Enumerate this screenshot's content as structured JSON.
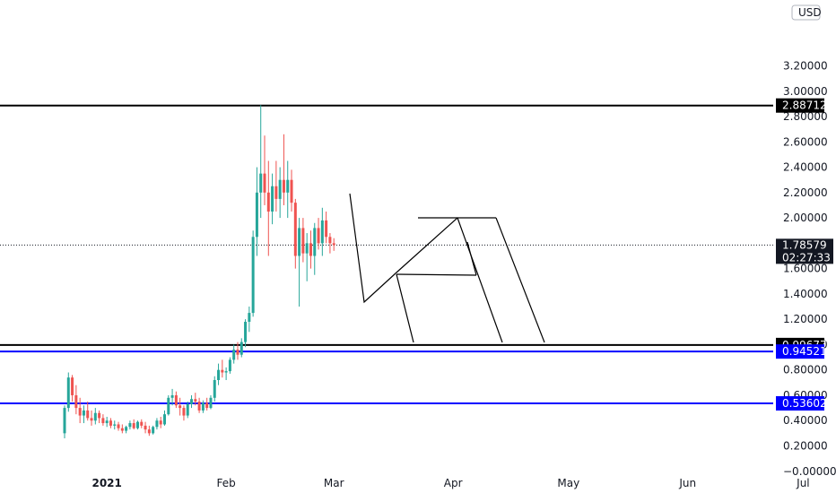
{
  "currency": "USD",
  "chart_data": {
    "type": "candlestick",
    "y_axis": {
      "range": [
        -0.03,
        3.72
      ],
      "ticks": [
        "3.20000",
        "3.00000",
        "2.80000",
        "2.60000",
        "2.40000",
        "2.20000",
        "2.00000",
        "1.80000",
        "1.60000",
        "1.40000",
        "1.20000",
        "1.00000",
        "0.80000",
        "0.60000",
        "0.40000",
        "0.20000",
        "−0.00000"
      ],
      "tick_values": [
        3.2,
        3.0,
        2.8,
        2.6,
        2.4,
        2.2,
        2.0,
        1.8,
        1.6,
        1.4,
        1.2,
        1.0,
        0.8,
        0.6,
        0.4,
        0.2,
        0.0
      ]
    },
    "x_axis": {
      "labels": [
        {
          "text": "2021",
          "date": "2021-01-01",
          "bold": true
        },
        {
          "text": "Feb",
          "date": "2021-02-01",
          "bold": false
        },
        {
          "text": "Mar",
          "date": "2021-03-01",
          "bold": false
        },
        {
          "text": "Apr",
          "date": "2021-04-01",
          "bold": false
        },
        {
          "text": "May",
          "date": "2021-05-01",
          "bold": false
        },
        {
          "text": "Jun",
          "date": "2021-06-01",
          "bold": false
        },
        {
          "text": "Jul",
          "date": "2021-07-01",
          "bold": false
        }
      ],
      "range": [
        "2020-12-21",
        "2021-07-10"
      ]
    },
    "current_price": {
      "value": 1.78579,
      "label": "1.78579",
      "countdown": "02:27:33"
    },
    "horizontal_levels": [
      {
        "value": 2.88712,
        "label": "2.88712",
        "color": "#000000"
      },
      {
        "value": 0.99677,
        "label": "0.99677",
        "color": "#000000"
      },
      {
        "value": 0.94521,
        "label": "0.94521",
        "color": "#0000ff"
      },
      {
        "value": 0.53602,
        "label": "0.53602",
        "color": "#0000ff"
      }
    ],
    "colors": {
      "up": "#26a69a",
      "down": "#ef5350",
      "axis_text": "#131722"
    },
    "candles": [
      [
        "2020-12-21",
        0.3,
        0.52,
        0.26,
        0.5
      ],
      [
        "2020-12-22",
        0.5,
        0.78,
        0.47,
        0.74
      ],
      [
        "2020-12-23",
        0.74,
        0.76,
        0.55,
        0.6
      ],
      [
        "2020-12-24",
        0.6,
        0.68,
        0.45,
        0.5
      ],
      [
        "2020-12-25",
        0.5,
        0.58,
        0.38,
        0.44
      ],
      [
        "2020-12-26",
        0.44,
        0.52,
        0.38,
        0.48
      ],
      [
        "2020-12-27",
        0.48,
        0.55,
        0.4,
        0.42
      ],
      [
        "2020-12-28",
        0.42,
        0.48,
        0.36,
        0.4
      ],
      [
        "2020-12-29",
        0.4,
        0.5,
        0.37,
        0.46
      ],
      [
        "2020-12-30",
        0.46,
        0.48,
        0.38,
        0.42
      ],
      [
        "2020-12-31",
        0.42,
        0.45,
        0.36,
        0.38
      ],
      [
        "2021-01-01",
        0.38,
        0.43,
        0.35,
        0.4
      ],
      [
        "2021-01-02",
        0.4,
        0.42,
        0.34,
        0.36
      ],
      [
        "2021-01-03",
        0.36,
        0.4,
        0.33,
        0.37
      ],
      [
        "2021-01-04",
        0.37,
        0.39,
        0.32,
        0.34
      ],
      [
        "2021-01-05",
        0.34,
        0.37,
        0.3,
        0.32
      ],
      [
        "2021-01-06",
        0.32,
        0.36,
        0.3,
        0.35
      ],
      [
        "2021-01-07",
        0.35,
        0.4,
        0.33,
        0.38
      ],
      [
        "2021-01-08",
        0.38,
        0.41,
        0.33,
        0.34
      ],
      [
        "2021-01-09",
        0.34,
        0.4,
        0.33,
        0.39
      ],
      [
        "2021-01-10",
        0.39,
        0.41,
        0.34,
        0.36
      ],
      [
        "2021-01-11",
        0.36,
        0.39,
        0.3,
        0.33
      ],
      [
        "2021-01-12",
        0.33,
        0.36,
        0.28,
        0.3
      ],
      [
        "2021-01-13",
        0.3,
        0.36,
        0.29,
        0.35
      ],
      [
        "2021-01-14",
        0.35,
        0.42,
        0.33,
        0.4
      ],
      [
        "2021-01-15",
        0.4,
        0.43,
        0.34,
        0.37
      ],
      [
        "2021-01-16",
        0.37,
        0.48,
        0.36,
        0.45
      ],
      [
        "2021-01-17",
        0.45,
        0.6,
        0.44,
        0.58
      ],
      [
        "2021-01-18",
        0.58,
        0.65,
        0.52,
        0.6
      ],
      [
        "2021-01-19",
        0.6,
        0.63,
        0.5,
        0.52
      ],
      [
        "2021-01-20",
        0.52,
        0.58,
        0.44,
        0.5
      ],
      [
        "2021-01-21",
        0.5,
        0.52,
        0.4,
        0.44
      ],
      [
        "2021-01-22",
        0.44,
        0.55,
        0.42,
        0.53
      ],
      [
        "2021-01-23",
        0.53,
        0.6,
        0.5,
        0.57
      ],
      [
        "2021-01-24",
        0.57,
        0.62,
        0.52,
        0.55
      ],
      [
        "2021-01-25",
        0.55,
        0.58,
        0.46,
        0.48
      ],
      [
        "2021-01-26",
        0.48,
        0.56,
        0.46,
        0.54
      ],
      [
        "2021-01-27",
        0.54,
        0.58,
        0.48,
        0.5
      ],
      [
        "2021-01-28",
        0.5,
        0.6,
        0.49,
        0.58
      ],
      [
        "2021-01-29",
        0.58,
        0.75,
        0.55,
        0.72
      ],
      [
        "2021-01-30",
        0.72,
        0.85,
        0.68,
        0.8
      ],
      [
        "2021-01-31",
        0.8,
        0.88,
        0.74,
        0.78
      ],
      [
        "2021-02-01",
        0.78,
        0.82,
        0.72,
        0.79
      ],
      [
        "2021-02-02",
        0.79,
        0.9,
        0.77,
        0.88
      ],
      [
        "2021-02-03",
        0.88,
        1.0,
        0.85,
        0.96
      ],
      [
        "2021-02-04",
        0.96,
        1.02,
        0.88,
        0.92
      ],
      [
        "2021-02-05",
        0.92,
        1.05,
        0.9,
        1.02
      ],
      [
        "2021-02-06",
        1.02,
        1.2,
        0.98,
        1.18
      ],
      [
        "2021-02-07",
        1.18,
        1.3,
        1.1,
        1.25
      ],
      [
        "2021-02-08",
        1.25,
        1.9,
        1.22,
        1.85
      ],
      [
        "2021-02-09",
        1.85,
        2.4,
        1.7,
        2.2
      ],
      [
        "2021-02-10",
        2.2,
        2.89,
        2.0,
        2.35
      ],
      [
        "2021-02-11",
        2.35,
        2.65,
        2.1,
        2.2
      ],
      [
        "2021-02-12",
        2.2,
        2.45,
        1.7,
        2.05
      ],
      [
        "2021-02-13",
        2.05,
        2.35,
        1.95,
        2.25
      ],
      [
        "2021-02-14",
        2.25,
        2.45,
        2.05,
        2.15
      ],
      [
        "2021-02-15",
        2.15,
        2.4,
        2.0,
        2.3
      ],
      [
        "2021-02-16",
        2.3,
        2.66,
        2.1,
        2.2
      ],
      [
        "2021-02-17",
        2.2,
        2.45,
        2.0,
        2.3
      ],
      [
        "2021-02-18",
        2.3,
        2.38,
        2.05,
        2.12
      ],
      [
        "2021-02-19",
        2.12,
        2.15,
        1.6,
        1.7
      ],
      [
        "2021-02-20",
        1.7,
        2.0,
        1.3,
        1.92
      ],
      [
        "2021-02-21",
        1.92,
        2.0,
        1.65,
        1.72
      ],
      [
        "2021-02-22",
        1.72,
        1.88,
        1.5,
        1.8
      ],
      [
        "2021-02-23",
        1.8,
        1.9,
        1.6,
        1.7
      ],
      [
        "2021-02-24",
        1.7,
        1.96,
        1.55,
        1.92
      ],
      [
        "2021-02-25",
        1.92,
        2.0,
        1.75,
        1.8
      ],
      [
        "2021-02-26",
        1.8,
        2.08,
        1.7,
        1.98
      ],
      [
        "2021-02-27",
        1.98,
        2.05,
        1.8,
        1.85
      ],
      [
        "2021-02-28",
        1.85,
        1.88,
        1.72,
        1.8
      ],
      [
        "2021-03-01",
        1.8,
        1.84,
        1.74,
        1.7858
      ]
    ]
  }
}
